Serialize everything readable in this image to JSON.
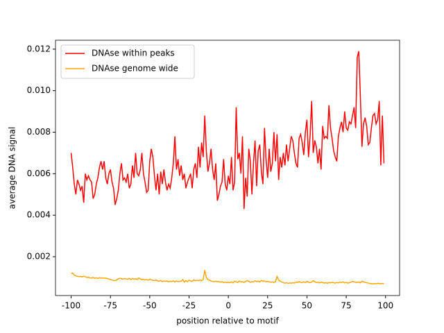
{
  "chart_data": {
    "type": "line",
    "xlabel": "position relative to motif",
    "ylabel": "average DNA signal",
    "x": [
      -100,
      -99,
      -98,
      -97,
      -96,
      -95,
      -94,
      -93,
      -92,
      -91,
      -90,
      -89,
      -88,
      -87,
      -86,
      -85,
      -84,
      -83,
      -82,
      -81,
      -80,
      -79,
      -78,
      -77,
      -76,
      -75,
      -74,
      -73,
      -72,
      -71,
      -70,
      -69,
      -68,
      -67,
      -66,
      -65,
      -64,
      -63,
      -62,
      -61,
      -60,
      -59,
      -58,
      -57,
      -56,
      -55,
      -54,
      -53,
      -52,
      -51,
      -50,
      -49,
      -48,
      -47,
      -46,
      -45,
      -44,
      -43,
      -42,
      -41,
      -40,
      -39,
      -38,
      -37,
      -36,
      -35,
      -34,
      -33,
      -32,
      -31,
      -30,
      -29,
      -28,
      -27,
      -26,
      -25,
      -24,
      -23,
      -22,
      -21,
      -20,
      -19,
      -18,
      -17,
      -16,
      -15,
      -14,
      -13,
      -12,
      -11,
      -10,
      -9,
      -8,
      -7,
      -6,
      -5,
      -4,
      -3,
      -2,
      -1,
      0,
      1,
      2,
      3,
      4,
      5,
      6,
      7,
      8,
      9,
      10,
      11,
      12,
      13,
      14,
      15,
      16,
      17,
      18,
      19,
      20,
      21,
      22,
      23,
      24,
      25,
      26,
      27,
      28,
      29,
      30,
      31,
      32,
      33,
      34,
      35,
      36,
      37,
      38,
      39,
      40,
      41,
      42,
      43,
      44,
      45,
      46,
      47,
      48,
      49,
      50,
      51,
      52,
      53,
      54,
      55,
      56,
      57,
      58,
      59,
      60,
      61,
      62,
      63,
      64,
      65,
      66,
      67,
      68,
      69,
      70,
      71,
      72,
      73,
      74,
      75,
      76,
      77,
      78,
      79,
      80,
      81,
      82,
      83,
      84,
      85,
      86,
      87,
      88,
      89,
      90,
      91,
      92,
      93,
      94,
      95,
      96,
      97,
      98,
      99
    ],
    "series": [
      {
        "name": "DNAse within peaks",
        "color": "#ff0000",
        "values": [
          0.007,
          0.0063,
          0.0055,
          0.005,
          0.0057,
          0.0055,
          0.0052,
          0.0054,
          0.0046,
          0.006,
          0.0057,
          0.0059,
          0.0057,
          0.0056,
          0.0048,
          0.005,
          0.0055,
          0.0058,
          0.0063,
          0.0066,
          0.0062,
          0.0066,
          0.0058,
          0.0055,
          0.006,
          0.0062,
          0.0056,
          0.0053,
          0.0045,
          0.0048,
          0.0052,
          0.006,
          0.0065,
          0.0057,
          0.0058,
          0.0056,
          0.006,
          0.0053,
          0.0055,
          0.0064,
          0.0058,
          0.007,
          0.006,
          0.0059,
          0.0062,
          0.007,
          0.006,
          0.0056,
          0.0051,
          0.0052,
          0.0066,
          0.0072,
          0.0068,
          0.0059,
          0.0052,
          0.006,
          0.005,
          0.0061,
          0.0055,
          0.0062,
          0.0056,
          0.0052,
          0.0055,
          0.0053,
          0.0058,
          0.0065,
          0.0078,
          0.0062,
          0.0067,
          0.0059,
          0.0064,
          0.0057,
          0.006,
          0.0053,
          0.0056,
          0.0058,
          0.006,
          0.0053,
          0.0062,
          0.0065,
          0.0058,
          0.0073,
          0.0063,
          0.0075,
          0.0068,
          0.0088,
          0.0071,
          0.0061,
          0.0065,
          0.0072,
          0.0062,
          0.0057,
          0.0065,
          0.0047,
          0.005,
          0.0054,
          0.0056,
          0.0067,
          0.0055,
          0.0052,
          0.0059,
          0.0055,
          0.0068,
          0.0052,
          0.0056,
          0.0092,
          0.0067,
          0.007,
          0.006,
          0.0078,
          0.0043,
          0.0058,
          0.0049,
          0.0072,
          0.0066,
          0.005,
          0.0065,
          0.0076,
          0.0054,
          0.0071,
          0.0074,
          0.0061,
          0.0055,
          0.0082,
          0.0067,
          0.0058,
          0.0072,
          0.0061,
          0.0065,
          0.008,
          0.0066,
          0.0079,
          0.0057,
          0.0068,
          0.0063,
          0.007,
          0.0064,
          0.0074,
          0.0066,
          0.0072,
          0.0078,
          0.0076,
          0.007,
          0.0065,
          0.0063,
          0.0077,
          0.0079,
          0.0075,
          0.0069,
          0.008,
          0.0086,
          0.0068,
          0.0078,
          0.0095,
          0.007,
          0.0076,
          0.0073,
          0.0065,
          0.0072,
          0.0062,
          0.0083,
          0.0077,
          0.0078,
          0.0077,
          0.0093,
          0.0082,
          0.0077,
          0.0071,
          0.0068,
          0.0066,
          0.0078,
          0.0082,
          0.0085,
          0.008,
          0.009,
          0.0082,
          0.0081,
          0.0085,
          0.0084,
          0.0088,
          0.0092,
          0.0082,
          0.0116,
          0.0119,
          0.0097,
          0.0073,
          0.0084,
          0.0087,
          0.0083,
          0.0074,
          0.0075,
          0.0082,
          0.0088,
          0.0089,
          0.0084,
          0.0086,
          0.0095,
          0.0064,
          0.0088,
          0.0065
        ]
      },
      {
        "name": "DNAse genome wide",
        "color": "#ffa500",
        "values": [
          0.0012,
          0.00121,
          0.00112,
          0.00108,
          0.00106,
          0.00104,
          0.00105,
          0.00103,
          0.00106,
          0.00104,
          0.001,
          0.00101,
          0.00098,
          0.00097,
          0.001,
          0.00096,
          0.00098,
          0.00095,
          0.00099,
          0.00097,
          0.00098,
          0.00096,
          0.00097,
          0.00095,
          0.00093,
          0.0009,
          0.00088,
          0.00086,
          0.00085,
          0.00088,
          0.00093,
          0.00096,
          0.00094,
          0.00092,
          0.00095,
          0.00093,
          0.00091,
          0.00096,
          0.0009,
          0.00095,
          0.00092,
          0.00094,
          0.0009,
          0.00098,
          0.00093,
          0.00089,
          0.00091,
          0.00088,
          0.0009,
          0.00087,
          0.00092,
          0.00088,
          0.00086,
          0.00085,
          0.00088,
          0.00084,
          0.00082,
          0.00086,
          0.0008,
          0.00083,
          0.00081,
          0.00083,
          0.00079,
          0.00082,
          0.0008,
          0.00084,
          0.00078,
          0.00083,
          0.0008,
          0.00081,
          0.00082,
          0.0009,
          0.00078,
          0.00085,
          0.0008,
          0.00087,
          0.00083,
          0.00081,
          0.00089,
          0.00084,
          0.00087,
          0.00085,
          0.00088,
          0.00084,
          0.0009,
          0.00135,
          0.001,
          0.0009,
          0.00087,
          0.00083,
          0.00081,
          0.0008,
          0.00082,
          0.00079,
          0.00081,
          0.00077,
          0.0008,
          0.00076,
          0.00078,
          0.00075,
          0.00077,
          0.00075,
          0.00079,
          0.00074,
          0.00082,
          0.00079,
          0.00076,
          0.00083,
          0.00078,
          0.0008,
          0.00076,
          0.00081,
          0.00085,
          0.00082,
          0.00077,
          0.0008,
          0.00078,
          0.00084,
          0.0008,
          0.00082,
          0.00078,
          0.00086,
          0.00082,
          0.00083,
          0.00079,
          0.00081,
          0.0008,
          0.00077,
          0.00079,
          0.00076,
          0.0008,
          0.00105,
          0.00088,
          0.00082,
          0.00078,
          0.00076,
          0.00072,
          0.00075,
          0.00071,
          0.00074,
          0.00072,
          0.00075,
          0.00073,
          0.00078,
          0.00076,
          0.0008,
          0.00077,
          0.00075,
          0.00079,
          0.00076,
          0.00081,
          0.00077,
          0.00075,
          0.00078,
          0.00085,
          0.00079,
          0.00076,
          0.00077,
          0.00074,
          0.00078,
          0.00076,
          0.00073,
          0.00075,
          0.00072,
          0.00076,
          0.00074,
          0.00077,
          0.00075,
          0.00073,
          0.00076,
          0.00074,
          0.00077,
          0.00076,
          0.00079,
          0.00074,
          0.00076,
          0.00073,
          0.00075,
          0.00077,
          0.00082,
          0.00079,
          0.00077,
          0.00076,
          0.00078,
          0.00074,
          0.00082,
          0.00079,
          0.00076,
          0.00075,
          0.00073,
          0.00071,
          0.0007,
          0.00069,
          0.00071,
          0.0007,
          0.00072,
          0.00071,
          0.0007,
          0.00071,
          0.0007
        ]
      }
    ],
    "xlim": [
      -109.95,
      108.95
    ],
    "ylim": [
      0.00013,
      0.01243
    ],
    "xticks": [
      -100,
      -75,
      -50,
      -25,
      0,
      25,
      50,
      75,
      100
    ],
    "yticks": [
      0.002,
      0.004,
      0.006,
      0.008,
      {
        "value": 0.01,
        "label": "0.010"
      },
      0.012
    ],
    "legend": "upper left"
  }
}
